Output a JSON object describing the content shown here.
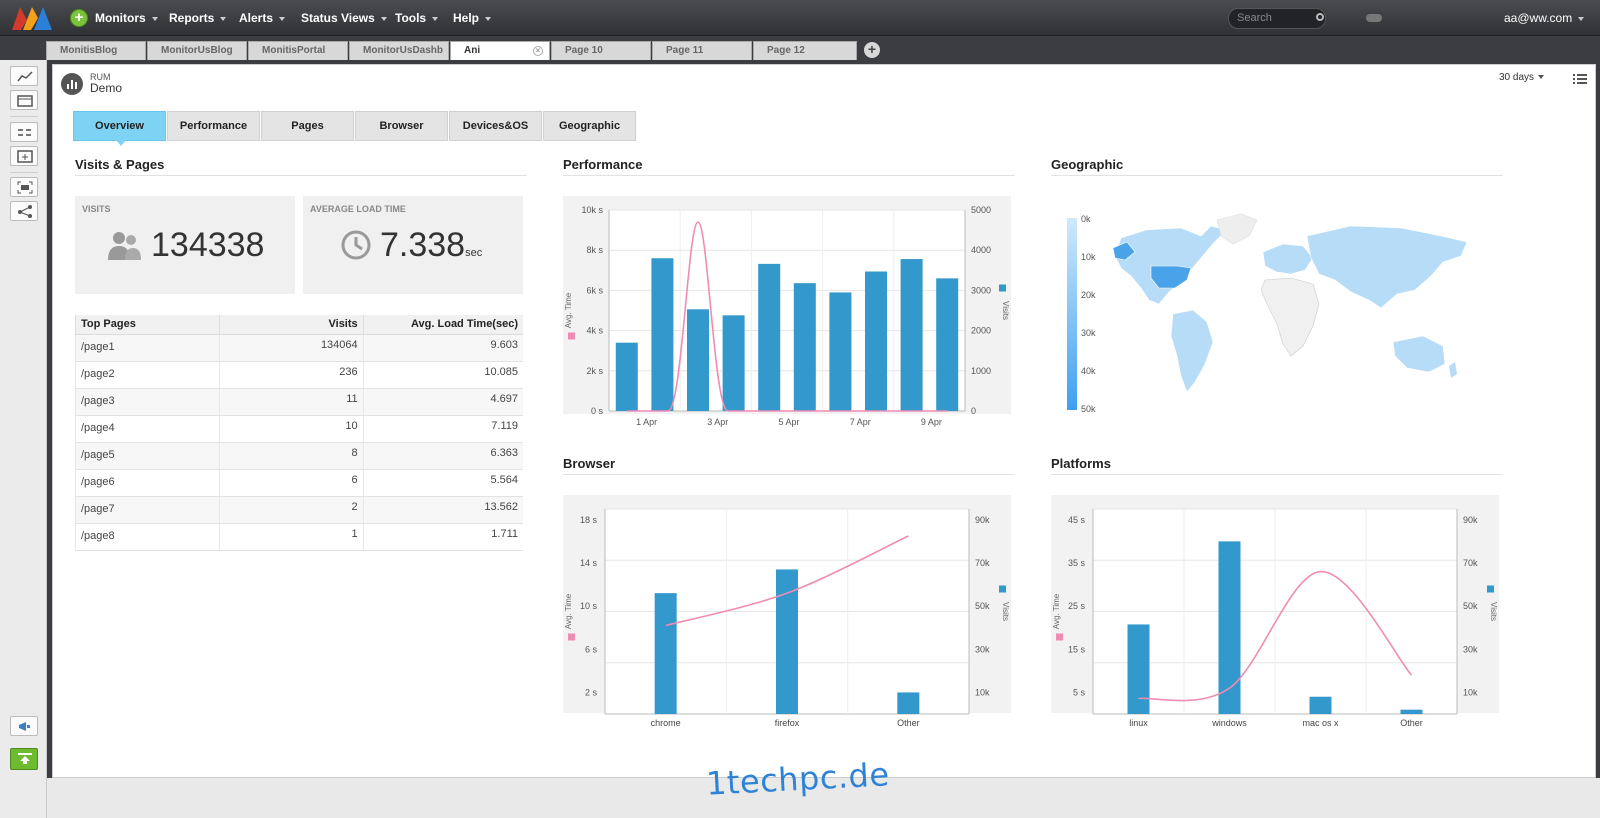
{
  "topbar": {
    "menus": [
      {
        "label": "Monitors"
      },
      {
        "label": "Reports"
      },
      {
        "label": "Alerts"
      },
      {
        "label": "Status Views"
      },
      {
        "label": "Tools"
      },
      {
        "label": "Help"
      }
    ],
    "search_placeholder": "Search",
    "user": "aa@ww.com"
  },
  "tabs": [
    {
      "label": "MonitisBlog"
    },
    {
      "label": "MonitorUsBlog"
    },
    {
      "label": "MonitisPortal"
    },
    {
      "label": "MonitorUsDashb"
    },
    {
      "label": "Ani",
      "active": true
    },
    {
      "label": "Page 10"
    },
    {
      "label": "Page 11"
    },
    {
      "label": "Page 12"
    }
  ],
  "header": {
    "label": "RUM",
    "title": "Demo",
    "range": "30 days"
  },
  "subtabs": [
    {
      "label": "Overview",
      "active": true
    },
    {
      "label": "Performance"
    },
    {
      "label": "Pages"
    },
    {
      "label": "Browser"
    },
    {
      "label": "Devices&OS"
    },
    {
      "label": "Geographic"
    }
  ],
  "sections": {
    "visits_pages": "Visits & Pages",
    "performance": "Performance",
    "geographic": "Geographic",
    "browser": "Browser",
    "platforms": "Platforms"
  },
  "kpis": {
    "visits_label": "VISITS",
    "visits_value": "134338",
    "load_label": "AVERAGE LOAD TIME",
    "load_value": "7.338",
    "load_unit": "sec"
  },
  "top_pages": {
    "headers": [
      "Top Pages",
      "Visits",
      "Avg. Load Time(sec)"
    ],
    "rows": [
      {
        "page": "/page1",
        "visits": "134064",
        "load": "9.603"
      },
      {
        "page": "/page2",
        "visits": "236",
        "load": "10.085"
      },
      {
        "page": "/page3",
        "visits": "11",
        "load": "4.697"
      },
      {
        "page": "/page4",
        "visits": "10",
        "load": "7.119"
      },
      {
        "page": "/page5",
        "visits": "8",
        "load": "6.363"
      },
      {
        "page": "/page6",
        "visits": "6",
        "load": "5.564"
      },
      {
        "page": "/page7",
        "visits": "2",
        "load": "13.562"
      },
      {
        "page": "/page8",
        "visits": "1",
        "load": "1.711"
      }
    ]
  },
  "chart_data": [
    {
      "id": "performance",
      "type": "bar",
      "x_ticks": [
        "1 Apr",
        "3 Apr",
        "5 Apr",
        "7 Apr",
        "9 Apr"
      ],
      "y_left_label": "Avg. Time",
      "y_right_label": "Visits",
      "y_left_ticks": [
        "0 s",
        "2k s",
        "4k s",
        "6k s",
        "8k s",
        "10k s"
      ],
      "y_right_ticks": [
        "0",
        "1000",
        "2000",
        "3000",
        "4000",
        "5000"
      ],
      "y_right_lim": [
        0,
        5000
      ],
      "bars": [
        1700,
        3800,
        2530,
        2380,
        3660,
        3180,
        2950,
        3470,
        3780,
        3300
      ],
      "line_peak_index": 2,
      "line_peak_value": 9400,
      "y_left_lim": [
        0,
        10000
      ]
    },
    {
      "id": "geographic",
      "type": "heatmap",
      "legend_ticks": [
        "0k",
        "10k",
        "20k",
        "30k",
        "40k",
        "50k"
      ]
    },
    {
      "id": "browser",
      "type": "bar",
      "categories": [
        "chrome",
        "firefox",
        "Other"
      ],
      "y_left_label": "Avg. Time",
      "y_right_label": "Visits",
      "y_left_ticks": [
        "2 s",
        "6 s",
        "10 s",
        "14 s",
        "18 s"
      ],
      "y_right_ticks": [
        "10k",
        "30k",
        "50k",
        "70k",
        "90k"
      ],
      "bars": [
        56000,
        67000,
        10000
      ],
      "line": [
        8.2,
        11.2,
        16.5
      ],
      "y_left_lim": [
        0,
        19
      ],
      "y_right_lim": [
        0,
        95000
      ]
    },
    {
      "id": "platforms",
      "type": "bar",
      "categories": [
        "linux",
        "windows",
        "mac os x",
        "Other"
      ],
      "y_left_label": "Avg. Time",
      "y_right_label": "Visits",
      "y_left_ticks": [
        "5 s",
        "15 s",
        "25 s",
        "35 s",
        "45 s"
      ],
      "y_right_ticks": [
        "10k",
        "30k",
        "50k",
        "70k",
        "90k"
      ],
      "bars": [
        41500,
        80000,
        8000,
        2000
      ],
      "line": [
        3.6,
        6.0,
        33.0,
        9.0
      ],
      "y_left_lim": [
        0,
        47.5
      ],
      "y_right_lim": [
        0,
        95000
      ]
    }
  ],
  "colors": {
    "bar": "#3399cc",
    "line": "#f08cb4",
    "active_tab": "#7ed3f5",
    "map_highlight": "#4aa3e8",
    "map_land": "#b7dcf7"
  }
}
